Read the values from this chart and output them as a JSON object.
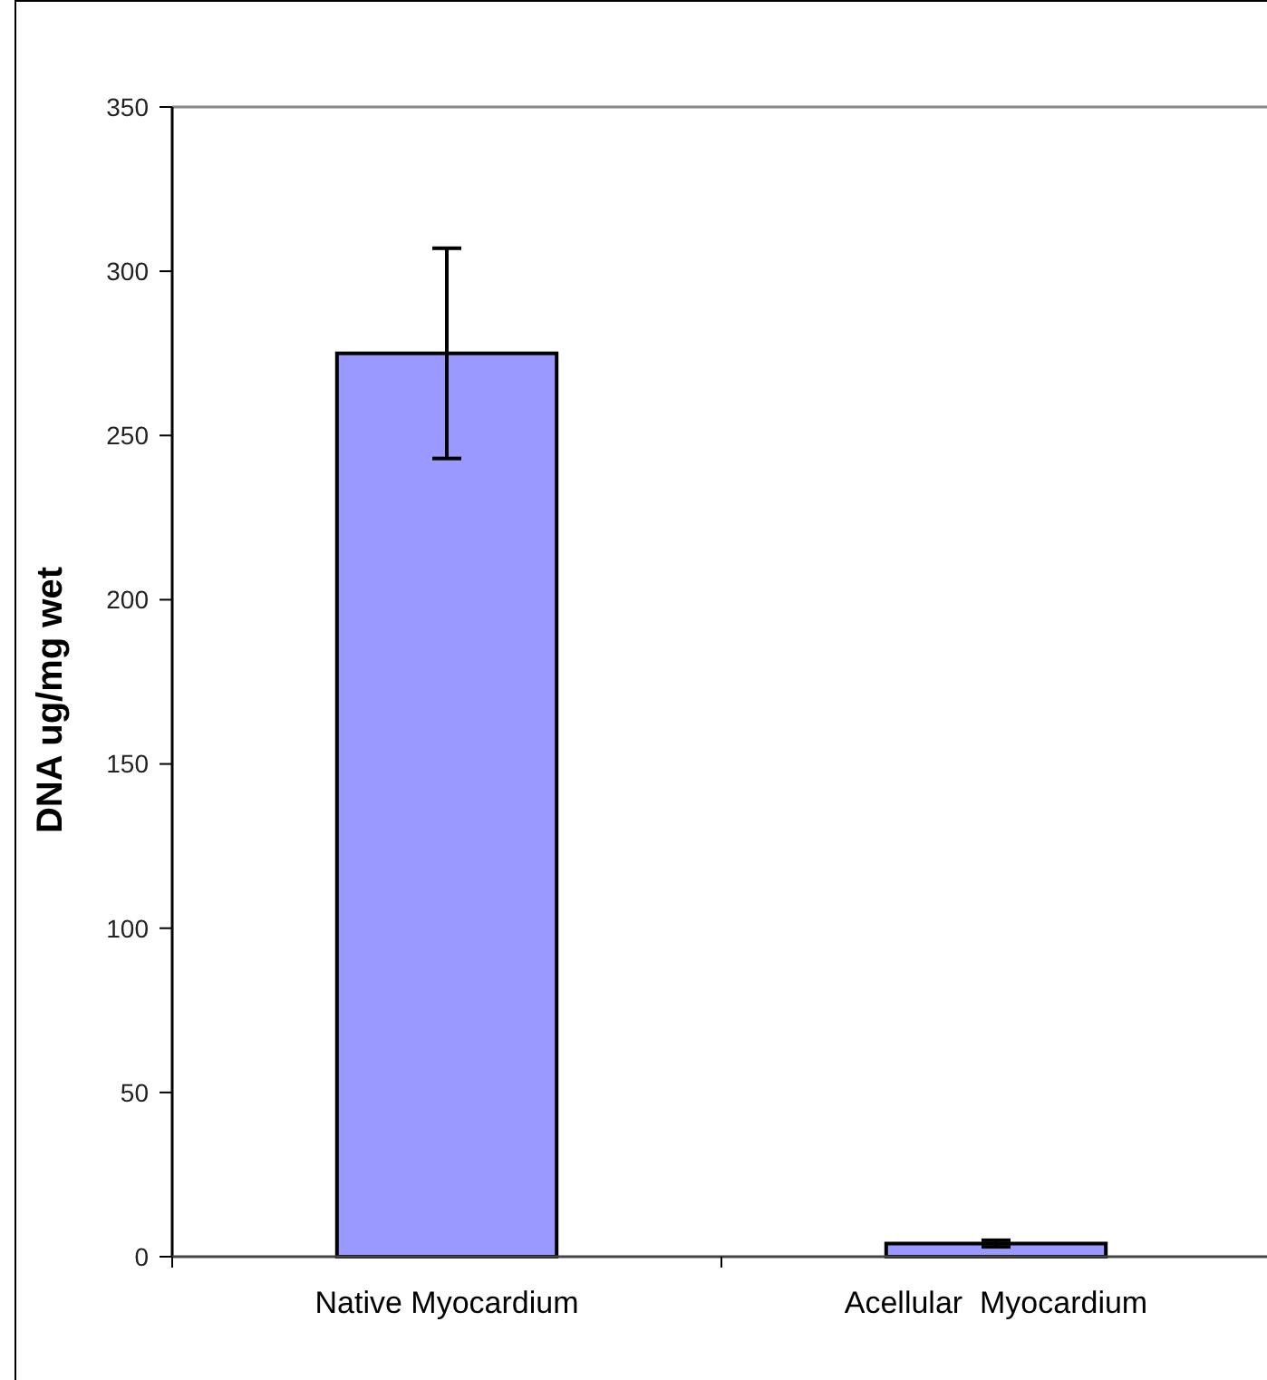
{
  "chart_data": {
    "type": "bar",
    "ylabel": "DNA ug/mg wet",
    "categories": [
      "Native Myocardium",
      "Acellular  Myocardium"
    ],
    "values": [
      275,
      4
    ],
    "errors": [
      32,
      1
    ],
    "color": "#9999ff",
    "ylim": [
      0,
      350
    ],
    "yticks": [
      0,
      50,
      100,
      150,
      200,
      250,
      300,
      350
    ],
    "grid": false
  }
}
